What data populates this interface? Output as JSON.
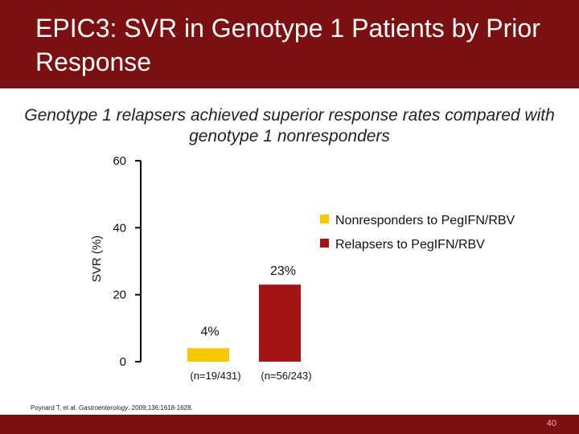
{
  "slide": {
    "title": "EPIC3: SVR in Genotype 1 Patients by Prior Response",
    "subtitle": "Genotype 1 relapsers achieved superior response rates compared with genotype 1 nonresponders",
    "citation_authors": "Poynard T, et al. ",
    "citation_journal": "Gastroenterology",
    "citation_rest": ". 2009;136:1618-1628.",
    "page_number": "40",
    "colors": {
      "header": "#7a1010",
      "nonresponders": "#f5c800",
      "relapsers": "#a31414"
    }
  },
  "chart_data": {
    "type": "bar",
    "ylabel": "SVR (%)",
    "ylim": [
      0,
      60
    ],
    "yticks": [
      "0",
      "20",
      "40",
      "60"
    ],
    "categories": [
      "Nonresponders to PegIFN/RBV",
      "Relapsers to PegIFN/RBV"
    ],
    "values": [
      4,
      23
    ],
    "value_labels": [
      "4%",
      "23%"
    ],
    "n_labels": [
      "(n=19/431)",
      "(n=56/243)"
    ],
    "legend": [
      "Nonresponders to PegIFN/RBV",
      "Relapsers to PegIFN/RBV"
    ],
    "legend_position": "right",
    "grid": false
  }
}
